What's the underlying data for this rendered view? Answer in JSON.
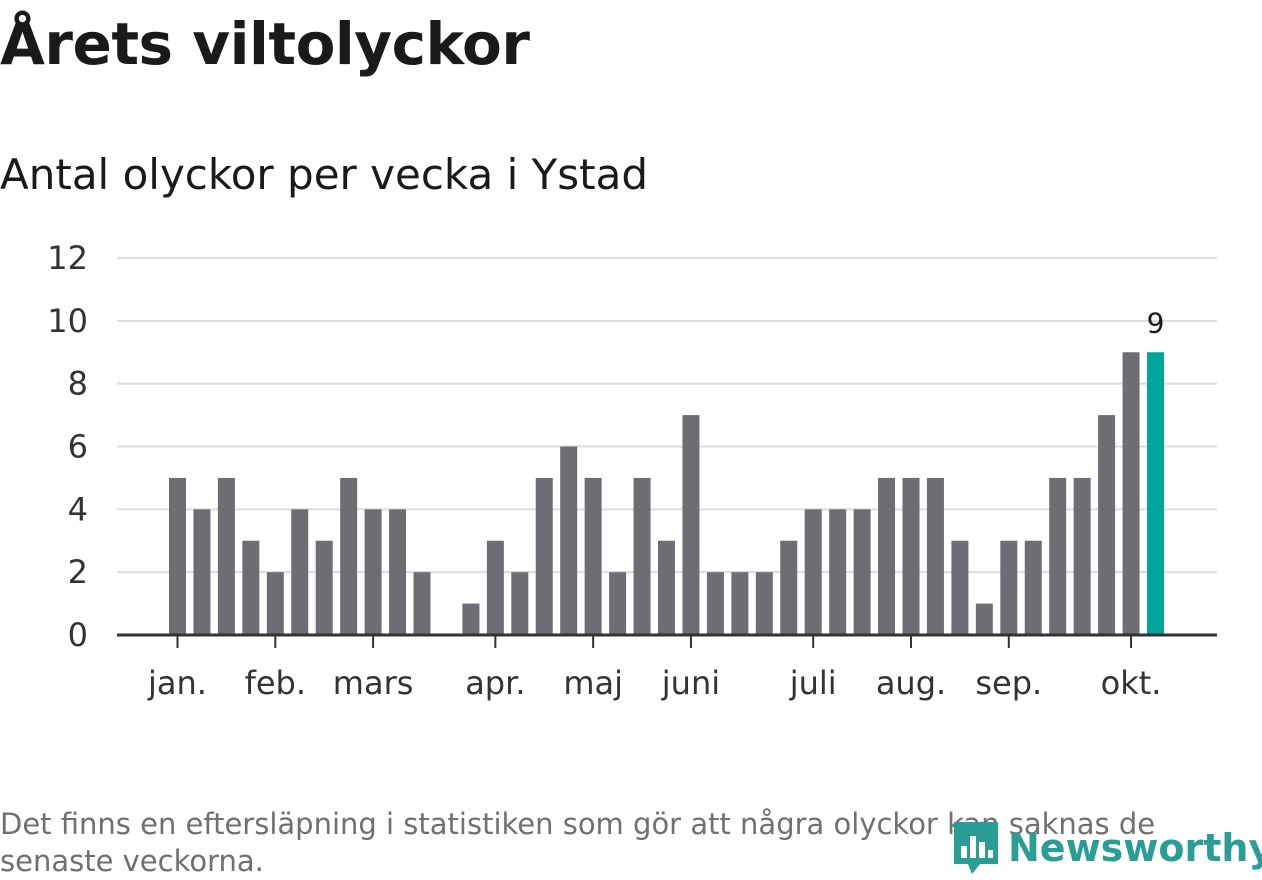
{
  "chart_data": {
    "type": "bar",
    "title": "Årets viltolyckor",
    "subtitle": "Antal olyckor per vecka i Ystad",
    "y_ticks": [
      "0",
      "2",
      "4",
      "6",
      "8",
      "10",
      "12"
    ],
    "ylim": [
      0,
      12
    ],
    "grid": true,
    "weeks": [
      1,
      2,
      3,
      4,
      5,
      6,
      7,
      8,
      9,
      10,
      11,
      12,
      13,
      14,
      15,
      16,
      17,
      18,
      19,
      20,
      21,
      22,
      23,
      24,
      25,
      26,
      27,
      28,
      29,
      30,
      31,
      32,
      33,
      34,
      35,
      36,
      37,
      38,
      39,
      40,
      41
    ],
    "values": [
      5,
      4,
      5,
      3,
      2,
      4,
      3,
      5,
      4,
      4,
      2,
      0,
      1,
      3,
      2,
      5,
      6,
      5,
      2,
      5,
      3,
      7,
      2,
      2,
      2,
      3,
      4,
      4,
      4,
      5,
      5,
      5,
      3,
      1,
      3,
      3,
      5,
      5,
      7,
      9,
      9
    ],
    "highlight_index": 40,
    "highlight_label": "9",
    "month_labels": [
      {
        "label": "jan.",
        "week": 1
      },
      {
        "label": "feb.",
        "week": 5
      },
      {
        "label": "mars",
        "week": 9
      },
      {
        "label": "apr.",
        "week": 14
      },
      {
        "label": "maj",
        "week": 18
      },
      {
        "label": "juni",
        "week": 22
      },
      {
        "label": "juli",
        "week": 27
      },
      {
        "label": "aug.",
        "week": 31
      },
      {
        "label": "sep.",
        "week": 35
      },
      {
        "label": "okt.",
        "week": 40
      }
    ],
    "colors": {
      "bar": "#6e6d73",
      "highlight": "#00a69c",
      "grid": "#dcdcdc",
      "axis": "#333333"
    }
  },
  "footnote": "Det finns en eftersläpning i statistiken som gör att några olyckor kan saknas de senaste veckorna.",
  "logo": {
    "text": "Newsworthy",
    "icon": "newsworthy-logo-icon",
    "color": "#2a9d96"
  }
}
